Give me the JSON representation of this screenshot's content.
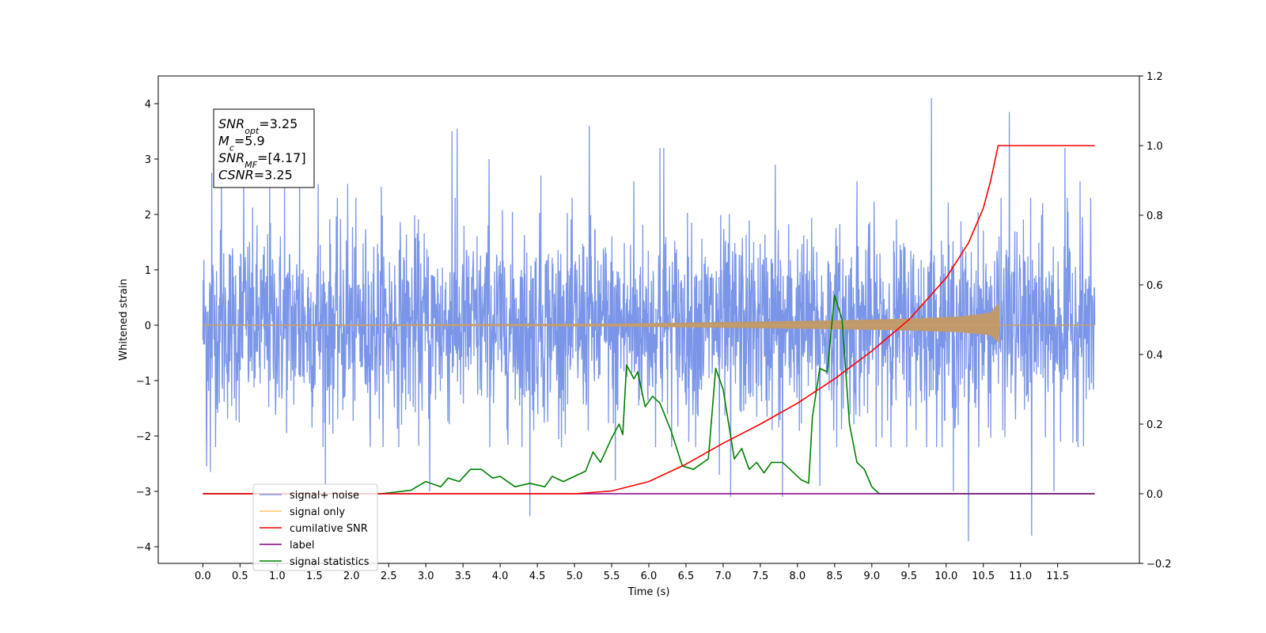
{
  "chart_data": {
    "type": "line",
    "xlabel": "Time (s)",
    "ylabel": "Whitened strain",
    "xlim": [
      -0.6,
      12.6
    ],
    "ylim_left": [
      -4.3,
      4.5
    ],
    "ylim_right": [
      -0.2,
      1.2
    ],
    "x_ticks": [
      "0.0",
      "0.5",
      "1.0",
      "1.5",
      "2.0",
      "2.5",
      "3.0",
      "3.5",
      "4.0",
      "4.5",
      "5.0",
      "5.5",
      "6.0",
      "6.5",
      "7.0",
      "7.5",
      "8.0",
      "8.5",
      "9.0",
      "9.5",
      "10.0",
      "10.5",
      "11.0",
      "11.5"
    ],
    "y_ticks_left": [
      "4",
      "3",
      "2",
      "1",
      "0",
      "−1",
      "−2",
      "−3",
      "−4"
    ],
    "y_ticks_right": [
      "1.2",
      "1.0",
      "0.8",
      "0.6",
      "0.4",
      "0.2",
      "0.0",
      "−0.2"
    ],
    "x_tick_values": [
      0,
      0.5,
      1,
      1.5,
      2,
      2.5,
      3,
      3.5,
      4,
      4.5,
      5,
      5.5,
      6,
      6.5,
      7,
      7.5,
      8,
      8.5,
      9,
      9.5,
      10,
      10.5,
      11,
      11.5
    ],
    "y_tick_values_left": [
      4,
      3,
      2,
      1,
      0,
      -1,
      -2,
      -3,
      -4
    ],
    "y_tick_values_right": [
      1.2,
      1.0,
      0.8,
      0.6,
      0.4,
      0.2,
      0.0,
      -0.2
    ],
    "info_box": [
      {
        "main": "SNR",
        "sub": "opt",
        "rest": "=3.25"
      },
      {
        "main": "M",
        "sub": "c",
        "rest": "=5.9"
      },
      {
        "main": "SNR",
        "sub": "MF",
        "rest": "=[4.17]"
      },
      {
        "main": "CSNR",
        "sub": "",
        "rest": "=3.25"
      }
    ],
    "legend": [
      {
        "label": "signal+ noise",
        "color": "#7b96e8"
      },
      {
        "label": "signal only",
        "color": "#ffc766"
      },
      {
        "label": "cumilative SNR",
        "color": "#ff0000"
      },
      {
        "label": "label",
        "color": "#800080"
      },
      {
        "label": "signal statistics",
        "color": "#008000"
      }
    ],
    "series": [
      {
        "name": "signal+ noise",
        "axis": "left",
        "color": "#7b96e8",
        "duration": 12.0,
        "noise_envelope": {
          "typical_max": 2.3,
          "typical_min": -2.2
        },
        "spikes": [
          {
            "x": 0.12,
            "y": 2.75
          },
          {
            "x": 0.25,
            "y": 2.9
          },
          {
            "x": 0.55,
            "y": 2.7
          },
          {
            "x": 0.9,
            "y": 2.6
          },
          {
            "x": 1.1,
            "y": 2.65
          },
          {
            "x": 1.3,
            "y": 2.8
          },
          {
            "x": 1.55,
            "y": 2.55
          },
          {
            "x": 1.95,
            "y": 2.55
          },
          {
            "x": 2.4,
            "y": 2.5
          },
          {
            "x": 3.35,
            "y": 3.5
          },
          {
            "x": 3.42,
            "y": 3.55
          },
          {
            "x": 3.85,
            "y": 3.0
          },
          {
            "x": 4.55,
            "y": 2.7
          },
          {
            "x": 5.2,
            "y": 3.6
          },
          {
            "x": 5.8,
            "y": 2.6
          },
          {
            "x": 6.15,
            "y": 3.2
          },
          {
            "x": 6.2,
            "y": 3.2
          },
          {
            "x": 7.1,
            "y": 2.75
          },
          {
            "x": 7.7,
            "y": 2.9
          },
          {
            "x": 8.8,
            "y": 2.6
          },
          {
            "x": 9.8,
            "y": 4.1
          },
          {
            "x": 10.85,
            "y": 3.85
          },
          {
            "x": 11.6,
            "y": 3.2
          },
          {
            "x": 11.8,
            "y": 2.6
          },
          {
            "x": 1.65,
            "y": -2.9
          },
          {
            "x": 3.05,
            "y": -3.0
          },
          {
            "x": 4.4,
            "y": -3.45
          },
          {
            "x": 5.55,
            "y": -2.8
          },
          {
            "x": 6.95,
            "y": -2.7
          },
          {
            "x": 7.1,
            "y": -3.1
          },
          {
            "x": 7.8,
            "y": -3.1
          },
          {
            "x": 10.3,
            "y": -3.9
          },
          {
            "x": 11.15,
            "y": -3.8
          },
          {
            "x": 11.45,
            "y": -3.0
          },
          {
            "x": 0.05,
            "y": -2.55
          },
          {
            "x": 0.1,
            "y": -2.65
          },
          {
            "x": 8.3,
            "y": -2.9
          },
          {
            "x": 10.1,
            "y": -3.0
          }
        ]
      },
      {
        "name": "signal only",
        "axis": "left",
        "color": "#ffc766",
        "envelope": [
          {
            "x": 0.0,
            "y": 0.0
          },
          {
            "x": 5.5,
            "y": 0.02
          },
          {
            "x": 7.0,
            "y": 0.05
          },
          {
            "x": 8.5,
            "y": 0.08
          },
          {
            "x": 9.5,
            "y": 0.11
          },
          {
            "x": 10.2,
            "y": 0.15
          },
          {
            "x": 10.6,
            "y": 0.22
          },
          {
            "x": 10.7,
            "y": 0.38
          },
          {
            "x": 10.72,
            "y": 0.0
          },
          {
            "x": 12.0,
            "y": 0.0
          }
        ]
      },
      {
        "name": "cumilative SNR",
        "axis": "right",
        "color": "#ff0000",
        "points": [
          {
            "x": 0.0,
            "y": 0.0
          },
          {
            "x": 5.0,
            "y": 0.0
          },
          {
            "x": 5.5,
            "y": 0.008
          },
          {
            "x": 6.0,
            "y": 0.035
          },
          {
            "x": 6.5,
            "y": 0.085
          },
          {
            "x": 7.0,
            "y": 0.145
          },
          {
            "x": 7.5,
            "y": 0.2
          },
          {
            "x": 8.0,
            "y": 0.26
          },
          {
            "x": 8.5,
            "y": 0.33
          },
          {
            "x": 9.0,
            "y": 0.41
          },
          {
            "x": 9.5,
            "y": 0.5
          },
          {
            "x": 10.0,
            "y": 0.62
          },
          {
            "x": 10.3,
            "y": 0.72
          },
          {
            "x": 10.5,
            "y": 0.82
          },
          {
            "x": 10.6,
            "y": 0.9
          },
          {
            "x": 10.7,
            "y": 1.0
          },
          {
            "x": 12.0,
            "y": 1.0
          }
        ]
      },
      {
        "name": "label",
        "axis": "right",
        "color": "#800080",
        "points": [
          {
            "x": 0.0,
            "y": 0.0
          },
          {
            "x": 12.0,
            "y": 0.0
          }
        ]
      },
      {
        "name": "signal statistics",
        "axis": "right",
        "color": "#008000",
        "points": [
          {
            "x": 0.0,
            "y": 0.0
          },
          {
            "x": 2.4,
            "y": 0.0
          },
          {
            "x": 2.8,
            "y": 0.01
          },
          {
            "x": 3.0,
            "y": 0.035
          },
          {
            "x": 3.2,
            "y": 0.02
          },
          {
            "x": 3.3,
            "y": 0.045
          },
          {
            "x": 3.45,
            "y": 0.035
          },
          {
            "x": 3.6,
            "y": 0.07
          },
          {
            "x": 3.75,
            "y": 0.07
          },
          {
            "x": 3.9,
            "y": 0.045
          },
          {
            "x": 4.0,
            "y": 0.05
          },
          {
            "x": 4.2,
            "y": 0.02
          },
          {
            "x": 4.4,
            "y": 0.03
          },
          {
            "x": 4.6,
            "y": 0.02
          },
          {
            "x": 4.7,
            "y": 0.05
          },
          {
            "x": 4.85,
            "y": 0.035
          },
          {
            "x": 5.0,
            "y": 0.05
          },
          {
            "x": 5.15,
            "y": 0.065
          },
          {
            "x": 5.25,
            "y": 0.12
          },
          {
            "x": 5.35,
            "y": 0.09
          },
          {
            "x": 5.5,
            "y": 0.16
          },
          {
            "x": 5.6,
            "y": 0.2
          },
          {
            "x": 5.65,
            "y": 0.17
          },
          {
            "x": 5.7,
            "y": 0.37
          },
          {
            "x": 5.8,
            "y": 0.33
          },
          {
            "x": 5.85,
            "y": 0.35
          },
          {
            "x": 5.95,
            "y": 0.25
          },
          {
            "x": 6.05,
            "y": 0.28
          },
          {
            "x": 6.15,
            "y": 0.26
          },
          {
            "x": 6.3,
            "y": 0.18
          },
          {
            "x": 6.45,
            "y": 0.08
          },
          {
            "x": 6.6,
            "y": 0.07
          },
          {
            "x": 6.8,
            "y": 0.1
          },
          {
            "x": 6.9,
            "y": 0.36
          },
          {
            "x": 7.0,
            "y": 0.3
          },
          {
            "x": 7.15,
            "y": 0.1
          },
          {
            "x": 7.25,
            "y": 0.13
          },
          {
            "x": 7.35,
            "y": 0.07
          },
          {
            "x": 7.45,
            "y": 0.09
          },
          {
            "x": 7.55,
            "y": 0.06
          },
          {
            "x": 7.65,
            "y": 0.09
          },
          {
            "x": 7.8,
            "y": 0.09
          },
          {
            "x": 7.9,
            "y": 0.07
          },
          {
            "x": 8.05,
            "y": 0.04
          },
          {
            "x": 8.15,
            "y": 0.03
          },
          {
            "x": 8.2,
            "y": 0.22
          },
          {
            "x": 8.3,
            "y": 0.36
          },
          {
            "x": 8.4,
            "y": 0.35
          },
          {
            "x": 8.5,
            "y": 0.57
          },
          {
            "x": 8.6,
            "y": 0.5
          },
          {
            "x": 8.7,
            "y": 0.2
          },
          {
            "x": 8.8,
            "y": 0.09
          },
          {
            "x": 8.9,
            "y": 0.07
          },
          {
            "x": 9.0,
            "y": 0.02
          },
          {
            "x": 9.1,
            "y": 0.0
          },
          {
            "x": 12.0,
            "y": 0.0
          }
        ]
      }
    ]
  }
}
